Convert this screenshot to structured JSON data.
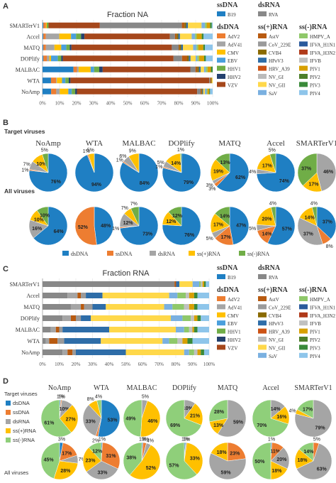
{
  "colors": {
    "B19": "#1f7fc3",
    "AdV2": "#ed7d31",
    "AdV41": "#a5a5a5",
    "CMV": "#ffc000",
    "EBV": "#4a9fdc",
    "HHV1": "#70ad47",
    "HHV2": "#24416e",
    "VZV": "#a5471b",
    "RVA": "#888888",
    "AstV": "#b85a10",
    "CoV_229E": "#9a9a9a",
    "CVB4": "#8a6a00",
    "HPeV3": "#2e6da8",
    "HRV_A39": "#cc5214",
    "NV_GI": "#bbbbbb",
    "NV_GII": "#ffd84a",
    "SaV": "#7ab0e0",
    "HMPV_A": "#8fc86a",
    "IFVA_H1N1": "#2a5a9c",
    "IFVA_H3N2": "#b03a1a",
    "IFVB": "#c0c0c0",
    "PIV1": "#d8a000",
    "PIV2": "#4d7f2a",
    "PIV3": "#3a8a3a",
    "PIV4": "#8ec5ea",
    "dsDNA": "#1f7fc3",
    "ssDNA": "#ed7d31",
    "dsRNA": "#a5a5a5",
    "ssplus": "#ffc000",
    "ssminus": "#70ad47",
    "D_dsDNA": "#1f7fc3",
    "D_ssDNA": "#ed7d31",
    "D_dsRNA": "#a5a5a5",
    "D_ssplus": "#ffc000",
    "D_ssminus": "#8fcf7a"
  },
  "panels": {
    "A": "A",
    "B": "B",
    "C": "C",
    "D": "D"
  },
  "legend_groups": {
    "ssDNA": "ssDNA",
    "dsRNA": "dsRNA",
    "dsDNA": "dsDNA",
    "ssplus": "ss(+)RNA",
    "ssminus": "ss(-)RNA"
  },
  "legend_items": {
    "ssDNA": [
      "B19"
    ],
    "dsRNA": [
      "RVA"
    ],
    "dsDNA": [
      "AdV2",
      "AdV41",
      "CMV",
      "EBV",
      "HHV1",
      "HHV2",
      "VZV"
    ],
    "ssplus": [
      "AstV",
      "CoV_229E",
      "CVB4",
      "HPeV3",
      "HRV_A39",
      "NV_GI",
      "NV_GII",
      "SaV"
    ],
    "ssminus": [
      "HMPV_A",
      "IFVA_H1N1",
      "IFVA_H3N2",
      "IFVB",
      "PIV1",
      "PIV2",
      "PIV3",
      "PIV4"
    ]
  },
  "panel_b": {
    "row1_label": "Target viruses",
    "row2_label": "All viruses",
    "legend": [
      "dsDNA",
      "ssDNA",
      "dsRNA",
      "ss(+)RNA",
      "ss(-)RNA"
    ]
  },
  "panel_d": {
    "row_labels": [
      "Target viruses",
      "All viruses"
    ],
    "legend": [
      "dsDNA",
      "ssDNA",
      "dsRNA",
      "ss(+)RNA",
      "ss(-)RNA"
    ]
  },
  "chart_data": [
    {
      "panel": "A",
      "type": "bar",
      "orientation": "horizontal",
      "stacked": true,
      "title": "Fraction NA",
      "categories": [
        "SMARTerV1",
        "Accel",
        "MATQ",
        "DOPlify",
        "MALBAC",
        "WTA",
        "NoAmp"
      ],
      "xlim": [
        0,
        100
      ],
      "xticks": [
        "0%",
        "10%",
        "20%",
        "30%",
        "40%",
        "50%",
        "60%",
        "70%",
        "80%",
        "90%",
        "100%"
      ],
      "series": [
        {
          "name": "B19",
          "values": [
            0.5,
            0.5,
            0.5,
            0.5,
            18,
            5,
            5
          ]
        },
        {
          "name": "AdV2",
          "values": [
            1.5,
            1.5,
            1.5,
            2,
            2,
            3,
            3
          ]
        },
        {
          "name": "AdV41",
          "values": [
            0,
            8,
            5,
            1.5,
            1,
            0.5,
            2
          ]
        },
        {
          "name": "CMV",
          "values": [
            0.5,
            7,
            4,
            1,
            7,
            3,
            5
          ]
        },
        {
          "name": "EBV",
          "values": [
            0,
            3,
            3,
            4,
            2,
            2,
            2
          ]
        },
        {
          "name": "HHV1",
          "values": [
            1,
            3,
            2,
            2,
            3,
            2,
            2
          ]
        },
        {
          "name": "HHV2",
          "values": [
            0,
            2,
            1,
            1,
            2,
            1,
            1
          ]
        },
        {
          "name": "VZV",
          "values": [
            30,
            51,
            59,
            65,
            51,
            82,
            70
          ]
        },
        {
          "name": "RVA",
          "values": [
            48,
            3,
            4,
            5,
            3,
            0.5,
            2
          ]
        },
        {
          "name": "AstV",
          "values": [
            1.5,
            1,
            0.5,
            3,
            1,
            0.5,
            0.5
          ]
        },
        {
          "name": "CVB4",
          "values": [
            1,
            1,
            1,
            1,
            1,
            0.5,
            0.5
          ]
        },
        {
          "name": "HPeV3",
          "values": [
            1,
            1,
            1,
            1,
            1,
            0,
            0.5
          ]
        },
        {
          "name": "NV_GII",
          "values": [
            8,
            7,
            6,
            3,
            2,
            0.5,
            1
          ]
        },
        {
          "name": "SaV",
          "values": [
            2,
            2,
            2,
            1,
            1,
            0,
            1
          ]
        },
        {
          "name": "HMPV_A",
          "values": [
            1,
            1,
            1,
            1,
            1,
            0,
            0.5
          ]
        },
        {
          "name": "PIV1",
          "values": [
            2,
            3,
            3,
            3,
            2,
            0,
            1
          ]
        },
        {
          "name": "PIV3",
          "values": [
            1,
            1,
            1,
            1,
            1,
            0,
            0.5
          ]
        },
        {
          "name": "PIV4",
          "values": [
            0.5,
            5.5,
            4.5,
            4,
            0,
            0,
            1.5
          ]
        }
      ]
    },
    {
      "panel": "B",
      "type": "pie",
      "samples": [
        "NoAmp",
        "WTA",
        "MALBAC",
        "DOPlify",
        "MATQ",
        "Accel",
        "SMARTerV1"
      ],
      "slice_order": [
        "dsDNA",
        "ssDNA",
        "dsRNA",
        "ss(+)RNA",
        "ss(-)RNA"
      ],
      "rows": [
        {
          "label": "Target viruses",
          "values": [
            [
              76,
              1,
              7,
              10,
              5
            ],
            [
              94,
              1,
              0,
              5,
              0
            ],
            [
              84,
              1,
              6,
              9,
              0
            ],
            [
              79,
              1,
              5,
              14,
              1
            ],
            [
              62,
              3,
              3,
              19,
              13
            ],
            [
              74,
              0,
              4,
              17,
              5
            ],
            [
              0,
              0,
              46,
              17,
              37
            ]
          ]
        },
        {
          "label": "All viruses",
          "values": [
            [
              64,
              0,
              16,
              10,
              10
            ],
            [
              48,
              52,
              0,
              0,
              0
            ],
            [
              73,
              1,
              12,
              7,
              7
            ],
            [
              76,
              0,
              0,
              12,
              12
            ],
            [
              47,
              17,
              5,
              17,
              14
            ],
            [
              57,
              14,
              5,
              20,
              4
            ],
            [
              37,
              8,
              37,
              14,
              4
            ]
          ]
        }
      ]
    },
    {
      "panel": "C",
      "type": "bar",
      "orientation": "horizontal",
      "stacked": true,
      "title": "Fraction RNA",
      "categories": [
        "SMARTerV1",
        "Accel",
        "MATQ",
        "DOPlify",
        "MALBAC",
        "WTA",
        "NoAmp"
      ],
      "xlim": [
        0,
        100
      ],
      "xticks": [
        "0%",
        "10%",
        "20%",
        "30%",
        "40%",
        "50%",
        "60%",
        "70%",
        "80%",
        "90%",
        "100%"
      ],
      "series": [
        {
          "name": "B19",
          "values": [
            0,
            0,
            0,
            0,
            0,
            0,
            0
          ]
        },
        {
          "name": "RVA",
          "values": [
            80,
            15,
            17,
            12,
            5,
            2,
            12
          ]
        },
        {
          "name": "AdV41",
          "values": [
            0,
            6,
            6,
            5,
            3,
            2,
            3
          ]
        },
        {
          "name": "AstV",
          "values": [
            1,
            2,
            2,
            3,
            2,
            5,
            3
          ]
        },
        {
          "name": "CoV_229E",
          "values": [
            0,
            3,
            5,
            3,
            2,
            4,
            2
          ]
        },
        {
          "name": "HPeV3",
          "values": [
            2,
            10,
            8,
            6,
            28,
            22,
            30
          ]
        },
        {
          "name": "NV_GII",
          "values": [
            8,
            40,
            35,
            48,
            40,
            37,
            35
          ]
        },
        {
          "name": "SaV",
          "values": [
            4,
            5,
            5,
            7,
            5,
            4,
            3
          ]
        },
        {
          "name": "HMPV_A",
          "values": [
            1,
            5,
            7,
            5,
            3,
            5,
            3
          ]
        },
        {
          "name": "IFVB",
          "values": [
            1,
            2,
            3,
            2,
            2,
            3,
            2
          ]
        },
        {
          "name": "PIV1",
          "values": [
            1,
            3,
            3,
            2,
            1,
            3,
            2
          ]
        },
        {
          "name": "PIV3",
          "values": [
            1,
            2,
            2,
            2,
            2,
            3,
            2
          ]
        },
        {
          "name": "PIV4",
          "values": [
            2,
            7,
            7,
            5,
            7,
            10,
            3
          ]
        }
      ]
    },
    {
      "panel": "D",
      "type": "pie",
      "samples": [
        "NoAmp",
        "WTA",
        "MALBAC",
        "DOPlify",
        "MATQ",
        "Accel",
        "SMARTerV1"
      ],
      "slice_order": [
        "dsDNA",
        "ssDNA",
        "dsRNA",
        "ss(+)RNA",
        "ss(-)RNA"
      ],
      "rows": [
        {
          "label": "Target viruses",
          "values": [
            [
              1,
              1,
              10,
              27,
              61
            ],
            [
              53,
              2,
              33,
              8,
              4
            ],
            [
              0,
              0,
              5,
              46,
              49
            ],
            [
              0,
              0,
              10,
              21,
              69
            ],
            [
              0,
              0,
              59,
              13,
              28
            ],
            [
              0,
              0,
              14,
              16,
              70
            ],
            [
              0,
              0,
              79,
              4,
              17
            ]
          ]
        },
        {
          "label": "All viruses",
          "values": [
            [
              3,
              17,
              7,
              28,
              45
            ],
            [
              1,
              31,
              33,
              23,
              12
            ],
            [
              1,
              3,
              4,
              52,
              38
            ],
            [
              1,
              0,
              1,
              33,
              57
            ],
            [
              0,
              23,
              59,
              18,
              0
            ],
            [
              1,
              11,
              20,
              18,
              50
            ],
            [
              0,
              5,
              63,
              18,
              14
            ]
          ]
        }
      ]
    }
  ]
}
